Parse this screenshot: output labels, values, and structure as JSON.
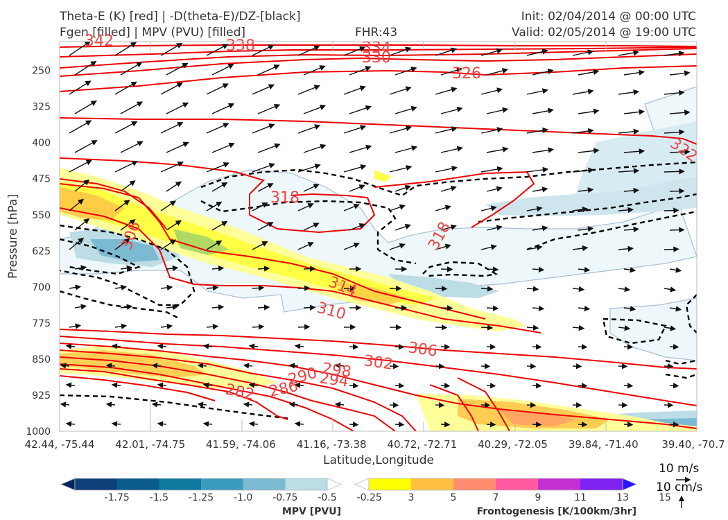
{
  "header": {
    "title_line1": "Theta-E (K) [red] | -D(theta-E)/DZ-[black]",
    "title_line2": "Fgen [filled] | MPV (PVU) [filled]",
    "fhr": "FHR:43",
    "init": "Init: 02/04/2014 @ 00:00 UTC",
    "valid": "Valid: 02/05/2014 @ 19:00 UTC"
  },
  "chart_data": {
    "type": "cross-section",
    "xlabel": "Latitude,Longitude",
    "ylabel": "Pressure [hPa]",
    "x_ticks": [
      "42.44, -75.44",
      "42.01, -74.75",
      "41.59, -74.06",
      "41.16, -73.38",
      "40.72, -72.71",
      "40.29, -72.05",
      "39.84, -71.40",
      "39.40, -70.7"
    ],
    "y_ticks": [
      250,
      325,
      400,
      475,
      550,
      625,
      700,
      775,
      850,
      925,
      1000
    ],
    "ylim": [
      1000,
      190
    ],
    "theta_e_labels": [
      "342",
      "338",
      "334",
      "330",
      "326",
      "322",
      "318",
      "318",
      "314",
      "310",
      "306",
      "306",
      "302",
      "298",
      "294",
      "290",
      "286",
      "282"
    ],
    "wind_scale": {
      "horizontal": "10 m/s",
      "vertical": "10 cm/s"
    },
    "colorbars": {
      "mpv": {
        "label": "MPV [PVU]",
        "ticks": [
          "-1.75",
          "-1.5",
          "-1.25",
          "-1.0",
          "-0.75",
          "-0.5",
          "-0.25"
        ],
        "colors": [
          "#08265e",
          "#0d3f78",
          "#0a5a8c",
          "#0e7aa0",
          "#3c9cc0",
          "#7cbad2",
          "#bcdce6",
          "#ffffff"
        ]
      },
      "fgen": {
        "label": "Frontogenesis [K/100km/3hr]",
        "ticks": [
          "3",
          "5",
          "7",
          "9",
          "11",
          "13",
          "15"
        ],
        "colors": [
          "#ffffff",
          "#ffff00",
          "#ffc042",
          "#ff8c6e",
          "#ff5aa0",
          "#c42fd4",
          "#7d22f0",
          "#2a14ff"
        ]
      }
    }
  }
}
